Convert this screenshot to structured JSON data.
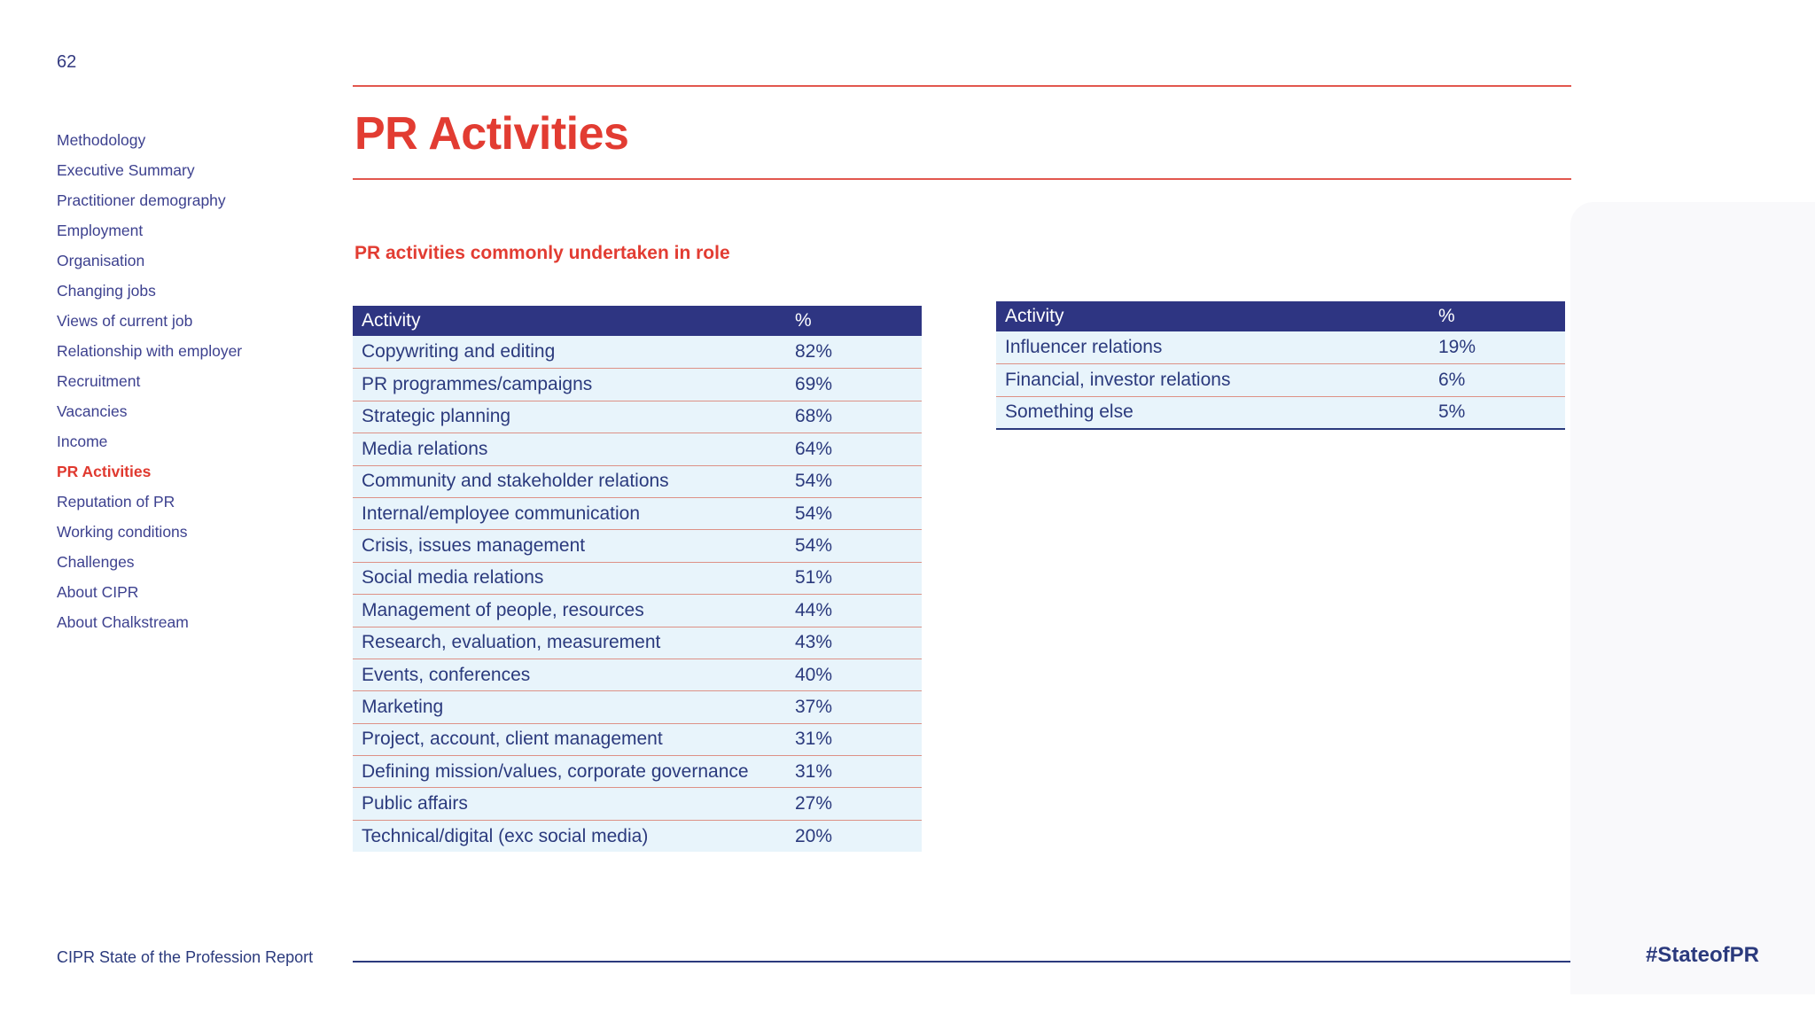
{
  "page": {
    "number": "62",
    "title": "PR Activities",
    "section_heading": "PR activities commonly undertaken in role",
    "footer_left": "CIPR State of the Profession Report",
    "footer_right": "#StateofPR"
  },
  "sidebar": {
    "items": [
      {
        "label": "Methodology",
        "active": false
      },
      {
        "label": "Executive Summary",
        "active": false
      },
      {
        "label": "Practitioner demography",
        "active": false
      },
      {
        "label": "Employment",
        "active": false
      },
      {
        "label": "Organisation",
        "active": false
      },
      {
        "label": "Changing jobs",
        "active": false
      },
      {
        "label": "Views of current job",
        "active": false
      },
      {
        "label": "Relationship with employer",
        "active": false
      },
      {
        "label": "Recruitment",
        "active": false
      },
      {
        "label": "Vacancies",
        "active": false
      },
      {
        "label": "Income",
        "active": false
      },
      {
        "label": "PR Activities",
        "active": true
      },
      {
        "label": "Reputation of PR",
        "active": false
      },
      {
        "label": "Working conditions",
        "active": false
      },
      {
        "label": "Challenges",
        "active": false
      },
      {
        "label": "About CIPR",
        "active": false
      },
      {
        "label": "About Chalkstream",
        "active": false
      }
    ]
  },
  "tables": [
    {
      "name": "pr-activities-main",
      "columns": [
        "Activity",
        "%"
      ],
      "rows": [
        [
          "Copywriting and editing",
          "82%"
        ],
        [
          "PR programmes/campaigns",
          "69%"
        ],
        [
          "Strategic planning",
          "68%"
        ],
        [
          "Media relations",
          "64%"
        ],
        [
          "Community and stakeholder relations",
          "54%"
        ],
        [
          "Internal/employee communication",
          "54%"
        ],
        [
          "Crisis, issues management",
          "54%"
        ],
        [
          "Social media relations",
          "51%"
        ],
        [
          "Management of people, resources",
          "44%"
        ],
        [
          "Research, evaluation, measurement",
          "43%"
        ],
        [
          "Events, conferences",
          "40%"
        ],
        [
          "Marketing",
          "37%"
        ],
        [
          "Project, account, client management",
          "31%"
        ],
        [
          "Defining mission/values, corporate governance",
          "31%"
        ],
        [
          "Public affairs",
          "27%"
        ],
        [
          "Technical/digital (exc social media)",
          "20%"
        ]
      ]
    },
    {
      "name": "pr-activities-other",
      "columns": [
        "Activity",
        "%"
      ],
      "rows": [
        [
          "Influencer relations",
          "19%"
        ],
        [
          "Financial, investor relations",
          "6%"
        ],
        [
          "Something else",
          "5%"
        ]
      ]
    }
  ],
  "colors": {
    "accent_red": "#e23c32",
    "rule_red": "#e2574e",
    "navy_text": "#2b3a7d",
    "sidebar_navy": "#3d418f",
    "table_header_bg": "#2e3582",
    "table_row_bg": "#e8f4fb",
    "row_divider": "#dd9186",
    "right_shade": "#f9f9fb"
  }
}
